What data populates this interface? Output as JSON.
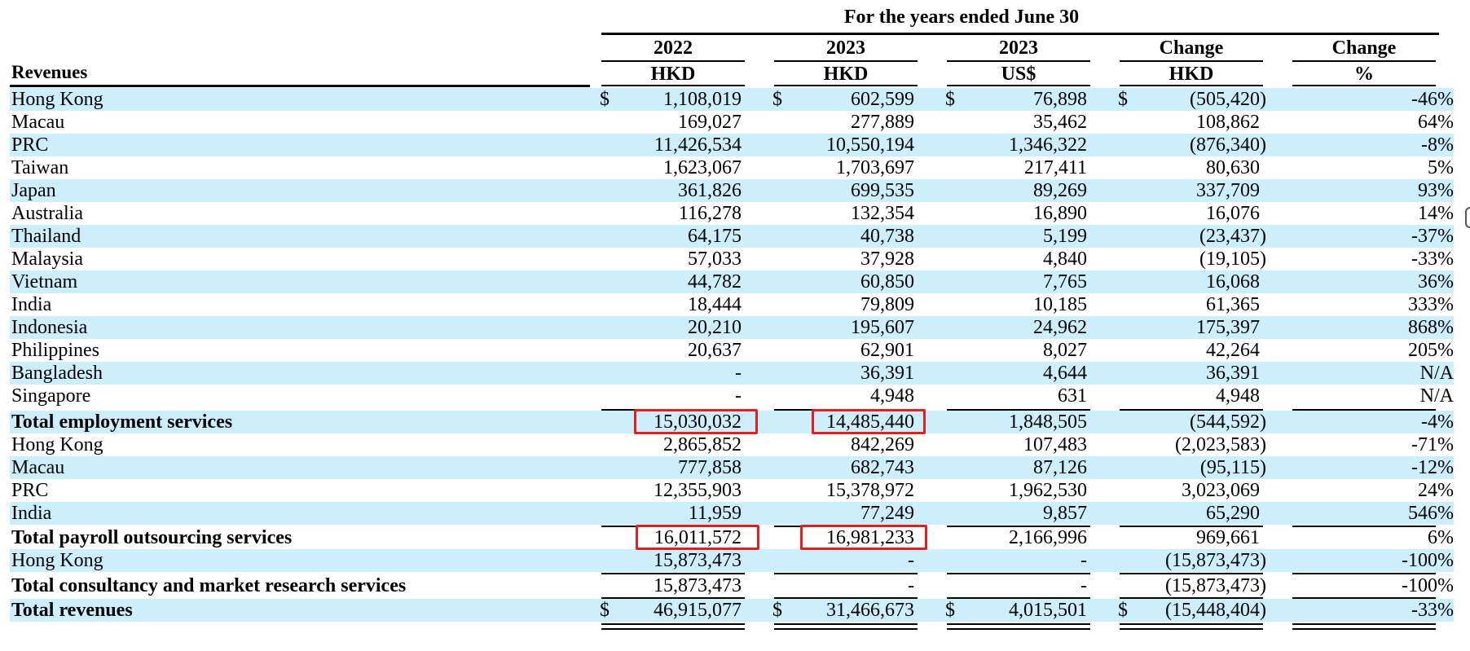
{
  "header": {
    "period": "For the years ended June 30",
    "row_label_heading": "Revenues",
    "columns": [
      {
        "key": "y2022",
        "top": "2022",
        "unit": "HKD"
      },
      {
        "key": "y2023",
        "top": "2023",
        "unit": "HKD"
      },
      {
        "key": "y2023usd",
        "top": "2023",
        "unit": "US$"
      },
      {
        "key": "chg",
        "top": "Change",
        "unit": "HKD"
      },
      {
        "key": "pct",
        "top": "Change",
        "unit": "%"
      }
    ]
  },
  "currency_symbol": "$",
  "rows": [
    {
      "label": "Hong Kong",
      "bold": false,
      "shaded": true,
      "values": [
        "1,108,019",
        "602,599",
        "76,898",
        "(505,420)",
        "-46%"
      ],
      "dollar": true
    },
    {
      "label": "Macau",
      "bold": false,
      "shaded": false,
      "values": [
        "169,027",
        "277,889",
        "35,462",
        "108,862",
        "64%"
      ]
    },
    {
      "label": "PRC",
      "bold": false,
      "shaded": true,
      "values": [
        "11,426,534",
        "10,550,194",
        "1,346,322",
        "(876,340)",
        "-8%"
      ]
    },
    {
      "label": "Taiwan",
      "bold": false,
      "shaded": false,
      "values": [
        "1,623,067",
        "1,703,697",
        "217,411",
        "80,630",
        "5%"
      ]
    },
    {
      "label": "Japan",
      "bold": false,
      "shaded": true,
      "values": [
        "361,826",
        "699,535",
        "89,269",
        "337,709",
        "93%"
      ]
    },
    {
      "label": "Australia",
      "bold": false,
      "shaded": false,
      "values": [
        "116,278",
        "132,354",
        "16,890",
        "16,076",
        "14%"
      ]
    },
    {
      "label": "Thailand",
      "bold": false,
      "shaded": true,
      "values": [
        "64,175",
        "40,738",
        "5,199",
        "(23,437)",
        "-37%"
      ]
    },
    {
      "label": "Malaysia",
      "bold": false,
      "shaded": false,
      "values": [
        "57,033",
        "37,928",
        "4,840",
        "(19,105)",
        "-33%"
      ]
    },
    {
      "label": "Vietnam",
      "bold": false,
      "shaded": true,
      "values": [
        "44,782",
        "60,850",
        "7,765",
        "16,068",
        "36%"
      ]
    },
    {
      "label": "India",
      "bold": false,
      "shaded": false,
      "values": [
        "18,444",
        "79,809",
        "10,185",
        "61,365",
        "333%"
      ]
    },
    {
      "label": "Indonesia",
      "bold": false,
      "shaded": true,
      "values": [
        "20,210",
        "195,607",
        "24,962",
        "175,397",
        "868%"
      ]
    },
    {
      "label": "Philippines",
      "bold": false,
      "shaded": false,
      "values": [
        "20,637",
        "62,901",
        "8,027",
        "42,264",
        "205%"
      ]
    },
    {
      "label": "Bangladesh",
      "bold": false,
      "shaded": true,
      "values": [
        "-",
        "36,391",
        "4,644",
        "36,391",
        "N/A"
      ]
    },
    {
      "label": "Singapore",
      "bold": false,
      "shaded": false,
      "values": [
        "-",
        "4,948",
        "631",
        "4,948",
        "N/A"
      ]
    },
    {
      "label": "Total employment services",
      "bold": true,
      "shaded": true,
      "values": [
        "15,030,032",
        "14,485,440",
        "1,848,505",
        "(544,592)",
        "-4%"
      ]
    },
    {
      "label": "Hong Kong",
      "bold": false,
      "shaded": false,
      "values": [
        "2,865,852",
        "842,269",
        "107,483",
        "(2,023,583)",
        "-71%"
      ]
    },
    {
      "label": "Macau",
      "bold": false,
      "shaded": true,
      "values": [
        "777,858",
        "682,743",
        "87,126",
        "(95,115)",
        "-12%"
      ]
    },
    {
      "label": "PRC",
      "bold": false,
      "shaded": false,
      "values": [
        "12,355,903",
        "15,378,972",
        "1,962,530",
        "3,023,069",
        "24%"
      ]
    },
    {
      "label": "India",
      "bold": false,
      "shaded": true,
      "values": [
        "11,959",
        "77,249",
        "9,857",
        "65,290",
        "546%"
      ]
    },
    {
      "label": "Total payroll outsourcing services",
      "bold": true,
      "shaded": false,
      "values": [
        "16,011,572",
        "16,981,233",
        "2,166,996",
        "969,661",
        "6%"
      ]
    },
    {
      "label": "Hong Kong",
      "bold": false,
      "shaded": true,
      "values": [
        "15,873,473",
        "-",
        "-",
        "(15,873,473)",
        "-100%"
      ]
    },
    {
      "label": "Total consultancy and market research services",
      "bold": true,
      "shaded": false,
      "values": [
        "15,873,473",
        "-",
        "-",
        "(15,873,473)",
        "-100%"
      ]
    },
    {
      "label": "Total revenues",
      "bold": true,
      "shaded": true,
      "values": [
        "46,915,077",
        "31,466,673",
        "4,015,501",
        "(15,448,404)",
        "-33%"
      ],
      "dollar": true
    }
  ],
  "highlight_color": "#e02020",
  "shade_color": "#cdeefc"
}
